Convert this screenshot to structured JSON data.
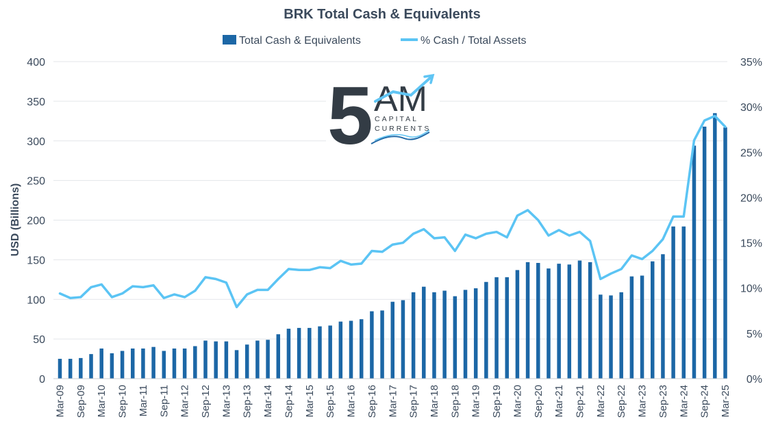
{
  "chart_data": {
    "type": "bar+line",
    "title": "BRK Total Cash & Equivalents",
    "ylabel": "USD (Billions)",
    "ylim": [
      0,
      400
    ],
    "y_ticks": [
      "0",
      "50",
      "100",
      "150",
      "200",
      "250",
      "300",
      "350",
      "400"
    ],
    "y2lim": [
      0,
      35
    ],
    "y2_ticks": [
      "0%",
      "5%",
      "10%",
      "15%",
      "20%",
      "25%",
      "30%",
      "35%"
    ],
    "x_tick_labels": [
      "Mar-09",
      "Sep-09",
      "Mar-10",
      "Sep-10",
      "Mar-11",
      "Sep-11",
      "Mar-12",
      "Sep-12",
      "Mar-13",
      "Sep-13",
      "Mar-14",
      "Sep-14",
      "Mar-15",
      "Sep-15",
      "Mar-16",
      "Sep-16",
      "Mar-17",
      "Sep-17",
      "Mar-18",
      "Sep-18",
      "Mar-19",
      "Sep-19",
      "Mar-20",
      "Sep-20",
      "Mar-21",
      "Sep-21",
      "Mar-22",
      "Sep-22",
      "Mar-23",
      "Sep-23",
      "Mar-24",
      "Sep-24",
      "Mar-25"
    ],
    "legend": {
      "position": "top-center",
      "bar_label": "Total Cash & Equivalents",
      "line_label": "% Cash / Total Assets"
    },
    "colors": {
      "bar": "#1c67a6",
      "line": "#5bc4f4"
    },
    "series": [
      {
        "name": "Total Cash & Equivalents",
        "kind": "bar",
        "axis": "left",
        "values": [
          25,
          25,
          26,
          31,
          38,
          32,
          35,
          38,
          38,
          40,
          35,
          38,
          38,
          41,
          48,
          47,
          47,
          36,
          43,
          48,
          49,
          56,
          63,
          64,
          64,
          66,
          67,
          72,
          73,
          75,
          85,
          86,
          97,
          99,
          109,
          116,
          109,
          111,
          104,
          112,
          114,
          122,
          128,
          128,
          137,
          147,
          146,
          139,
          145,
          144,
          149,
          147,
          106,
          105,
          109,
          129,
          130,
          148,
          157,
          192,
          192,
          294,
          318,
          335,
          317
        ]
      },
      {
        "name": "% Cash / Total Assets",
        "kind": "line",
        "axis": "right",
        "values": [
          9.4,
          8.9,
          9.0,
          10.1,
          10.4,
          9.0,
          9.4,
          10.2,
          10.1,
          10.3,
          8.9,
          9.3,
          9.0,
          9.7,
          11.2,
          11.0,
          10.6,
          7.9,
          9.3,
          9.8,
          9.8,
          11.0,
          12.1,
          12.0,
          12.0,
          12.3,
          12.2,
          13.0,
          12.6,
          12.7,
          14.1,
          14.0,
          14.8,
          15.0,
          16.0,
          16.5,
          15.5,
          15.6,
          14.1,
          15.9,
          15.5,
          16.0,
          16.2,
          15.6,
          18.0,
          18.6,
          17.5,
          15.8,
          16.4,
          15.8,
          16.2,
          15.2,
          11.0,
          11.6,
          12.1,
          13.6,
          13.2,
          14.1,
          15.4,
          17.9,
          17.9,
          26.3,
          28.5,
          29.0,
          27.8
        ]
      }
    ]
  },
  "logo": {
    "numeral": "5",
    "letters": "AM",
    "line1": "CAPITAL",
    "line2": "CURRENTS"
  }
}
